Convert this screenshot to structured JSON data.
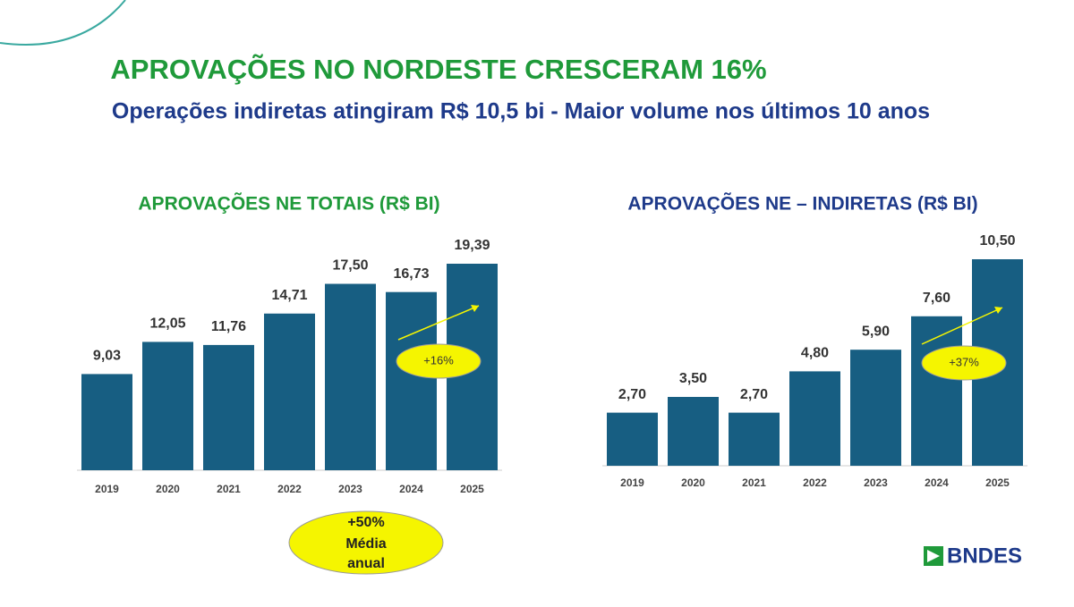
{
  "header": {
    "title": "APROVAÇÕES NO NORDESTE CRESCERAM 16%",
    "subtitle": "Operações indiretas atingiram R$ 10,5 bi - Maior volume nos últimos 10 anos"
  },
  "chart_data": [
    {
      "type": "bar",
      "title": "APROVAÇÕES NE TOTAIS (R$ BI)",
      "title_color": "#1f9a3a",
      "categories": [
        "2019",
        "2020",
        "2021",
        "2022",
        "2023",
        "2024",
        "2025"
      ],
      "values": [
        9.03,
        12.05,
        11.76,
        14.71,
        17.5,
        16.73,
        19.39
      ],
      "value_labels": [
        "9,03",
        "12,05",
        "11,76",
        "14,71",
        "17,50",
        "16,73",
        "19,39"
      ],
      "color": "#175e82",
      "annotation": "+16%"
    },
    {
      "type": "bar",
      "title": "APROVAÇÕES NE – INDIRETAS (R$ BI)",
      "title_color": "#1e3a8a",
      "categories": [
        "2019",
        "2020",
        "2021",
        "2022",
        "2023",
        "2024",
        "2025"
      ],
      "values": [
        2.7,
        3.5,
        2.7,
        4.8,
        5.9,
        7.6,
        10.5
      ],
      "value_labels": [
        "2,70",
        "3,50",
        "2,70",
        "4,80",
        "5,90",
        "7,60",
        "10,50"
      ],
      "color": "#175e82",
      "annotation": "+37%"
    }
  ],
  "note": [
    "+50%",
    "Média",
    "anual"
  ],
  "logo": "BNDES"
}
